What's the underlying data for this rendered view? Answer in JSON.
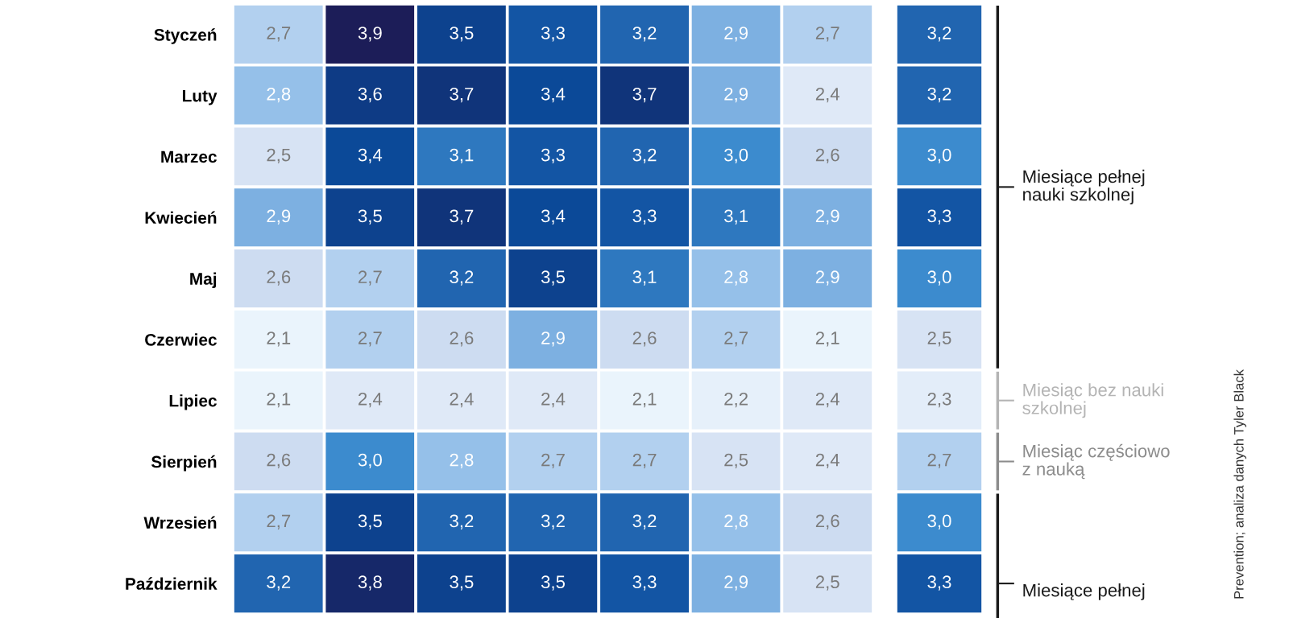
{
  "chart_data": [
    {
      "type": "heatmap",
      "categories": [
        null,
        null,
        null,
        null,
        null,
        null,
        null
      ],
      "y_categories": [
        "Styczeń",
        "Luty",
        "Marzec",
        "Kwiecień",
        "Maj",
        "Czerwiec",
        "Lipiec",
        "Sierpień",
        "Wrzesień",
        "Październik"
      ],
      "cells": [
        [
          2.7,
          3.9,
          3.5,
          3.3,
          3.2,
          2.9,
          2.7
        ],
        [
          2.8,
          3.6,
          3.7,
          3.4,
          3.7,
          2.9,
          2.4
        ],
        [
          2.5,
          3.4,
          3.1,
          3.3,
          3.2,
          3.0,
          2.6
        ],
        [
          2.9,
          3.5,
          3.7,
          3.4,
          3.3,
          3.1,
          2.9
        ],
        [
          2.6,
          2.7,
          3.2,
          3.5,
          3.1,
          2.8,
          2.9
        ],
        [
          2.1,
          2.7,
          2.6,
          2.9,
          2.6,
          2.7,
          2.1
        ],
        [
          2.1,
          2.4,
          2.4,
          2.4,
          2.1,
          2.2,
          2.4
        ],
        [
          2.6,
          3.0,
          2.8,
          2.7,
          2.7,
          2.5,
          2.4
        ],
        [
          2.7,
          3.5,
          3.2,
          3.2,
          3.2,
          2.8,
          2.6
        ],
        [
          3.2,
          3.8,
          3.5,
          3.5,
          3.3,
          2.9,
          2.5
        ]
      ],
      "cell_labels": [
        [
          "2,7",
          "3,9",
          "3,5",
          "3,3",
          "3,2",
          "2,9",
          "2,7"
        ],
        [
          "2,8",
          "3,6",
          "3,7",
          "3,4",
          "3,7",
          "2,9",
          "2,4"
        ],
        [
          "2,5",
          "3,4",
          "3,1",
          "3,3",
          "3,2",
          "3,0",
          "2,6"
        ],
        [
          "2,9",
          "3,5",
          "3,7",
          "3,4",
          "3,3",
          "3,1",
          "2,9"
        ],
        [
          "2,6",
          "2,7",
          "3,2",
          "3,5",
          "3,1",
          "2,8",
          "2,9"
        ],
        [
          "2,1",
          "2,7",
          "2,6",
          "2,9",
          "2,6",
          "2,7",
          "2,1"
        ],
        [
          "2,1",
          "2,4",
          "2,4",
          "2,4",
          "2,1",
          "2,2",
          "2,4"
        ],
        [
          "2,6",
          "3,0",
          "2,8",
          "2,7",
          "2,7",
          "2,5",
          "2,4"
        ],
        [
          "2,7",
          "3,5",
          "3,2",
          "3,2",
          "3,2",
          "2,8",
          "2,6"
        ],
        [
          "3,2",
          "3,8",
          "3,5",
          "3,5",
          "3,3",
          "2,9",
          "2,5"
        ]
      ]
    },
    {
      "type": "heatmap",
      "categories": [
        null
      ],
      "y_categories": [
        null,
        null,
        null,
        null,
        null,
        null,
        null,
        null,
        null,
        null
      ],
      "cells": [
        [
          3.2
        ],
        [
          3.2
        ],
        [
          3.0
        ],
        [
          3.3
        ],
        [
          3.0
        ],
        [
          2.5
        ],
        [
          2.3
        ],
        [
          2.7
        ],
        [
          3.0
        ],
        [
          3.3
        ]
      ],
      "cell_labels": [
        [
          "3,2"
        ],
        [
          "3,2"
        ],
        [
          "3,0"
        ],
        [
          "3,3"
        ],
        [
          "3,0"
        ],
        [
          "2,5"
        ],
        [
          "2,3"
        ],
        [
          "2,7"
        ],
        [
          "3,0"
        ],
        [
          "3,3"
        ]
      ],
      "annotations": [
        "Miesiące pełnej nauki szkolnej",
        "Miesiąc bez nauki szkolnej",
        "Miesiąc częściowo z nauką",
        "Miesiące pełnej",
        "Prevention; analiza danych Tyler Black"
      ]
    }
  ]
}
